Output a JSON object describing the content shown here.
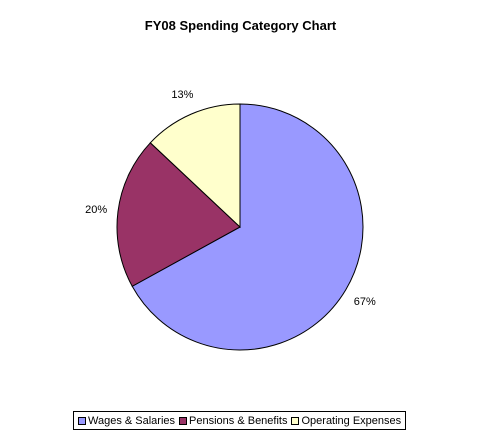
{
  "chart_data": {
    "type": "pie",
    "title": "FY08 Spending Category Chart",
    "slices": [
      {
        "name": "Wages & Salaries",
        "value": 67,
        "label": "67%",
        "color": "#9999ff"
      },
      {
        "name": "Pensions & Benefits",
        "value": 20,
        "label": "20%",
        "color": "#993366"
      },
      {
        "name": "Operating Expenses",
        "value": 13,
        "label": "13%",
        "color": "#ffffcc"
      }
    ],
    "legend_position": "bottom"
  }
}
